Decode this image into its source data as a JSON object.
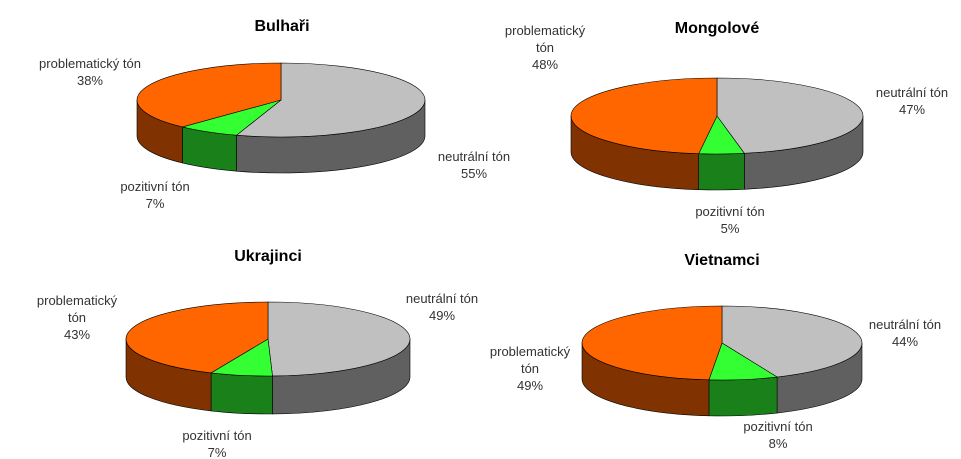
{
  "chart_data": [
    {
      "type": "pie",
      "title": "Bulhaři",
      "categories": [
        "neutrální tón",
        "pozitivní tón",
        "problematický tón"
      ],
      "values": [
        55,
        7,
        38
      ],
      "value_labels": [
        "55%",
        "7%",
        "38%"
      ],
      "colors": [
        "#c0c0c0",
        "#33ff33",
        "#ff6600"
      ]
    },
    {
      "type": "pie",
      "title": "Mongolové",
      "categories": [
        "neutrální tón",
        "pozitivní tón",
        "problematický tón"
      ],
      "values": [
        47,
        5,
        48
      ],
      "value_labels": [
        "47%",
        "5%",
        "48%"
      ],
      "colors": [
        "#c0c0c0",
        "#33ff33",
        "#ff6600"
      ]
    },
    {
      "type": "pie",
      "title": "Ukrajinci",
      "categories": [
        "neutrální tón",
        "pozitivní tón",
        "problematický tón"
      ],
      "values": [
        49,
        7,
        43
      ],
      "value_labels": [
        "49%",
        "7%",
        "43%"
      ],
      "colors": [
        "#c0c0c0",
        "#33ff33",
        "#ff6600"
      ]
    },
    {
      "type": "pie",
      "title": "Vietnamci",
      "categories": [
        "neutrální tón",
        "pozitivní tón",
        "problematický tón"
      ],
      "values": [
        44,
        8,
        49
      ],
      "value_labels": [
        "44%",
        "8%",
        "49%"
      ],
      "colors": [
        "#c0c0c0",
        "#33ff33",
        "#ff6600"
      ]
    }
  ]
}
